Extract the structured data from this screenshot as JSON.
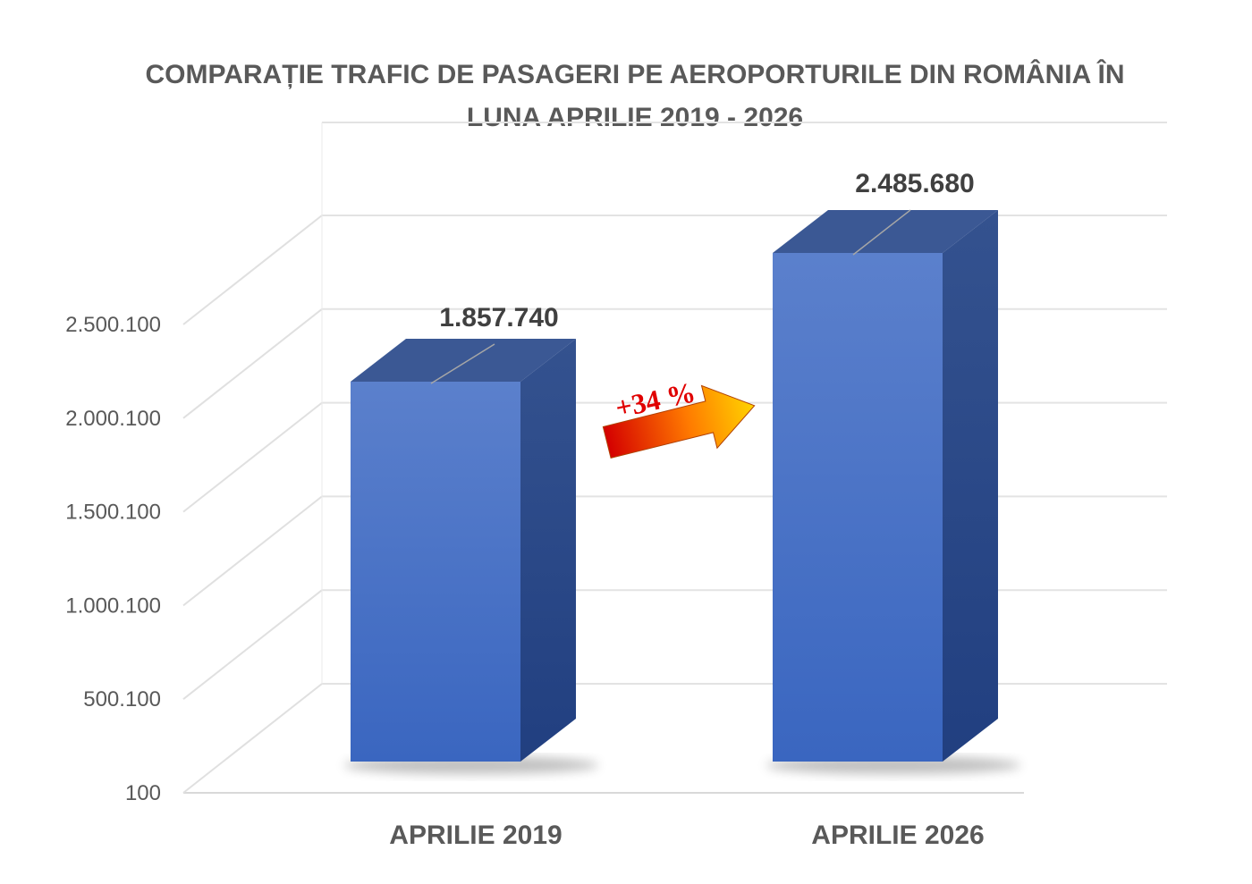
{
  "chart_data": {
    "type": "bar",
    "title_lines": [
      "COMPARAȚIE TRAFIC DE PASAGERI PE AEROPORTURILE DIN ROMÂNIA ÎN",
      "LUNA APRILIE 2019 - 2026"
    ],
    "categories": [
      "APRILIE 2019",
      "APRILIE 2026"
    ],
    "values": [
      1857740,
      2485680
    ],
    "value_labels": [
      "1.857.740",
      "2.485.680"
    ],
    "ylim": [
      100,
      2500100
    ],
    "yticks": [
      100,
      500100,
      1000100,
      1500100,
      2000100,
      2500100
    ],
    "ytick_labels": [
      "100",
      "500.100",
      "1.000.100",
      "1.500.100",
      "2.000.100",
      "2.500.100"
    ],
    "grid": true,
    "legend": "none",
    "annotation": {
      "text": "+34 %"
    },
    "colors": {
      "bar_front": "#4472c4",
      "bar_top": "#3b5894",
      "bar_side": "#2d4a86",
      "arrow_start": "#e00000",
      "arrow_end": "#ffd700",
      "annotation": "#e00000"
    }
  }
}
